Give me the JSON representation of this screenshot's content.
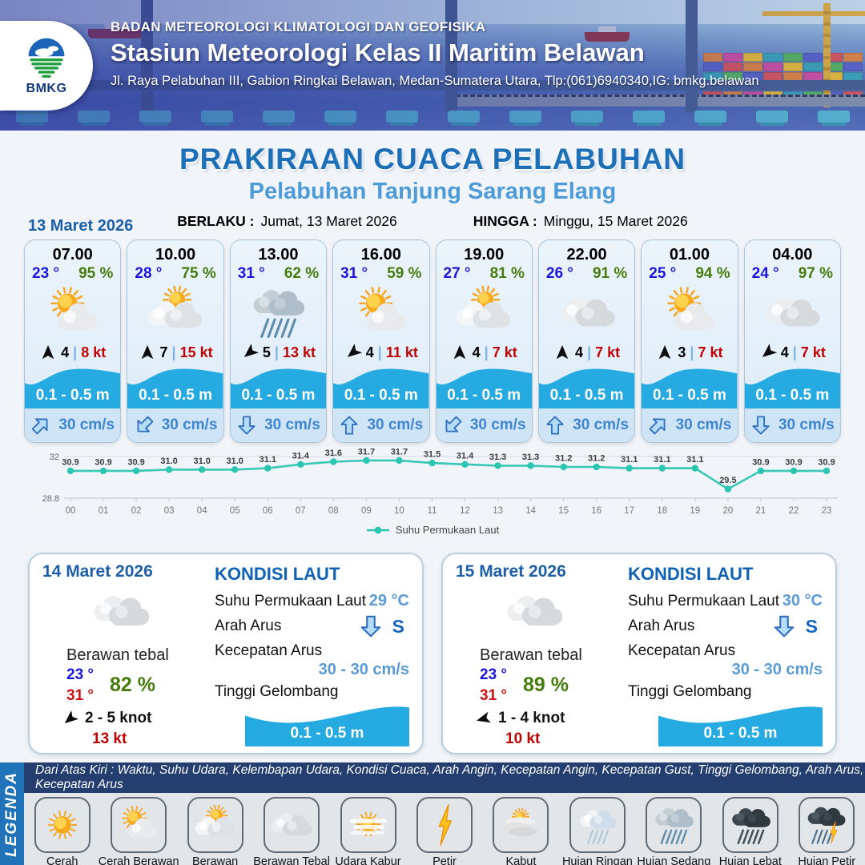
{
  "header": {
    "agency": "BADAN METEOROLOGI KLIMATOLOGI DAN GEOFISIKA",
    "station": "Stasiun Meteorologi Kelas II Maritim Belawan",
    "address": "Jl. Raya Pelabuhan III, Gabion Ringkai Belawan, Medan-Sumatera Utara, Tlp:(061)6940340,IG: bmkg.belawan",
    "logo_text": "BMKG"
  },
  "title": {
    "main": "PRAKIRAAN CUACA PELABUHAN",
    "subtitle": "Pelabuhan Tanjung Sarang Elang",
    "berlaku_label": "BERLAKU :",
    "berlaku_value": "Jumat, 13 Maret 2026",
    "hingga_label": "HINGGA :",
    "hingga_value": "Minggu, 15 Maret 2026"
  },
  "hourly": {
    "date": "13 Maret 2026",
    "cards": [
      {
        "time": "07.00",
        "temp": "23 °",
        "humidity": "95 %",
        "icon": "cerah-berawan",
        "wind_dir_deg": 0,
        "wind_avg": "4",
        "separator": "|",
        "wind_gust": "8 kt",
        "wave": "0.1 - 0.5 m",
        "current_dir_deg": 45,
        "current_speed": "30 cm/s"
      },
      {
        "time": "10.00",
        "temp": "28 °",
        "humidity": "75 %",
        "icon": "berawan",
        "wind_dir_deg": 0,
        "wind_avg": "7",
        "separator": "|",
        "wind_gust": "15 kt",
        "wave": "0.1 - 0.5 m",
        "current_dir_deg": 225,
        "current_speed": "30 cm/s"
      },
      {
        "time": "13.00",
        "temp": "31 °",
        "humidity": "62 %",
        "icon": "hujan-sedang",
        "wind_dir_deg": 230,
        "wind_avg": "5",
        "separator": "|",
        "wind_gust": "13 kt",
        "wave": "0.1 - 0.5 m",
        "current_dir_deg": 180,
        "current_speed": "30 cm/s"
      },
      {
        "time": "16.00",
        "temp": "31 °",
        "humidity": "59 %",
        "icon": "cerah-berawan",
        "wind_dir_deg": 230,
        "wind_avg": "4",
        "separator": "|",
        "wind_gust": "11 kt",
        "wave": "0.1 - 0.5 m",
        "current_dir_deg": 0,
        "current_speed": "30 cm/s"
      },
      {
        "time": "19.00",
        "temp": "27 °",
        "humidity": "81 %",
        "icon": "berawan",
        "wind_dir_deg": 0,
        "wind_avg": "4",
        "separator": "|",
        "wind_gust": "7 kt",
        "wave": "0.1 - 0.5 m",
        "current_dir_deg": 225,
        "current_speed": "30 cm/s"
      },
      {
        "time": "22.00",
        "temp": "26 °",
        "humidity": "91 %",
        "icon": "berawan-tebal",
        "wind_dir_deg": 0,
        "wind_avg": "4",
        "separator": "|",
        "wind_gust": "7 kt",
        "wave": "0.1 - 0.5 m",
        "current_dir_deg": 0,
        "current_speed": "30 cm/s"
      },
      {
        "time": "01.00",
        "temp": "25 °",
        "humidity": "94 %",
        "icon": "cerah-berawan",
        "wind_dir_deg": 0,
        "wind_avg": "3",
        "separator": "|",
        "wind_gust": "7 kt",
        "wave": "0.1 - 0.5 m",
        "current_dir_deg": 45,
        "current_speed": "30 cm/s"
      },
      {
        "time": "04.00",
        "temp": "24 °",
        "humidity": "97 %",
        "icon": "berawan-tebal",
        "wind_dir_deg": 230,
        "wind_avg": "4",
        "separator": "|",
        "wind_gust": "7 kt",
        "wave": "0.1 - 0.5 m",
        "current_dir_deg": 180,
        "current_speed": "30 cm/s"
      }
    ]
  },
  "chart_data": {
    "type": "line",
    "x_labels": [
      "00",
      "01",
      "02",
      "03",
      "04",
      "05",
      "06",
      "07",
      "08",
      "09",
      "10",
      "11",
      "12",
      "13",
      "14",
      "15",
      "16",
      "17",
      "18",
      "19",
      "20",
      "21",
      "22",
      "23"
    ],
    "series": [
      {
        "name": "Suhu Permukaan Laut",
        "values": [
          30.9,
          30.9,
          30.9,
          31.0,
          31.0,
          31.0,
          31.1,
          31.4,
          31.6,
          31.7,
          31.7,
          31.5,
          31.4,
          31.3,
          31.3,
          31.2,
          31.2,
          31.1,
          31.1,
          31.1,
          29.5,
          30.9,
          30.9,
          30.9
        ],
        "color": "#2cc5b2"
      }
    ],
    "ylim": [
      28.8,
      32
    ],
    "y_tick_labels": [
      "32",
      "28.8"
    ],
    "grid": true,
    "legend_position": "bottom"
  },
  "days": [
    {
      "date": "14 Maret 2026",
      "icon": "berawan-tebal",
      "condition": "Berawan tebal",
      "temp_min": "23 °",
      "temp_max": "31 °",
      "humidity": "82 %",
      "wind_dir_deg": 230,
      "wind_range": "2 - 5 knot",
      "gust": "13 kt",
      "sea": {
        "heading": "KONDISI LAUT",
        "sst_label": "Suhu Permukaan Laut",
        "sst_value": "29 °C",
        "current_dir_label": "Arah Arus",
        "current_dir_deg": 180,
        "current_dir_value": "S",
        "current_speed_label": "Kecepatan Arus",
        "current_speed_value": "30 - 30 cm/s",
        "wave_label": "Tinggi Gelombang",
        "wave_value": "0.1 - 0.5 m"
      }
    },
    {
      "date": "15 Maret 2026",
      "icon": "berawan-tebal",
      "condition": "Berawan tebal",
      "temp_min": "23 °",
      "temp_max": "31 °",
      "humidity": "89 %",
      "wind_dir_deg": 255,
      "wind_range": "1 - 4 knot",
      "gust": "10 kt",
      "sea": {
        "heading": "KONDISI LAUT",
        "sst_label": "Suhu Permukaan Laut",
        "sst_value": "30 °C",
        "current_dir_label": "Arah Arus",
        "current_dir_deg": 180,
        "current_dir_value": "S",
        "current_speed_label": "Kecepatan Arus",
        "current_speed_value": "30 - 30 cm/s",
        "wave_label": "Tinggi Gelombang",
        "wave_value": "0.1 - 0.5 m"
      }
    }
  ],
  "legend": {
    "side_label": "LEGENDA",
    "header_text": "Dari Atas Kiri : Waktu, Suhu Udara, Kelembapan Udara, Kondisi Cuaca, Arah Angin, Kecepatan Angin, Kecepatan Gust, Tinggi Gelombang, Arah Arus, Kecepatan Arus",
    "items": [
      {
        "label": "Cerah",
        "icon": "cerah"
      },
      {
        "label": "Cerah Berawan",
        "icon": "cerah-berawan"
      },
      {
        "label": "Berawan",
        "icon": "berawan"
      },
      {
        "label": "Berawan Tebal",
        "icon": "berawan-tebal"
      },
      {
        "label": "Udara Kabur",
        "icon": "udara-kabur"
      },
      {
        "label": "Petir",
        "icon": "petir"
      },
      {
        "label": "Kabut",
        "icon": "kabut"
      },
      {
        "label": "Hujan Ringan",
        "icon": "hujan-ringan"
      },
      {
        "label": "Hujan Sedang",
        "icon": "hujan-sedang"
      },
      {
        "label": "Hujan Lebat",
        "icon": "hujan-lebat"
      },
      {
        "label": "Hujan Petir",
        "icon": "hujan-petir"
      }
    ]
  },
  "colors": {
    "accent_blue": "#1d6fb8",
    "subtitle_blue": "#4d9bd8",
    "wave_blue": "#25aae1",
    "chart_teal": "#2cc5b2",
    "temp_blue": "#1a16e0",
    "humidity_green": "#467c0c",
    "gust_red": "#c00404",
    "navy_strip": "#243e70",
    "legend_band_blue": "#2173b9"
  }
}
